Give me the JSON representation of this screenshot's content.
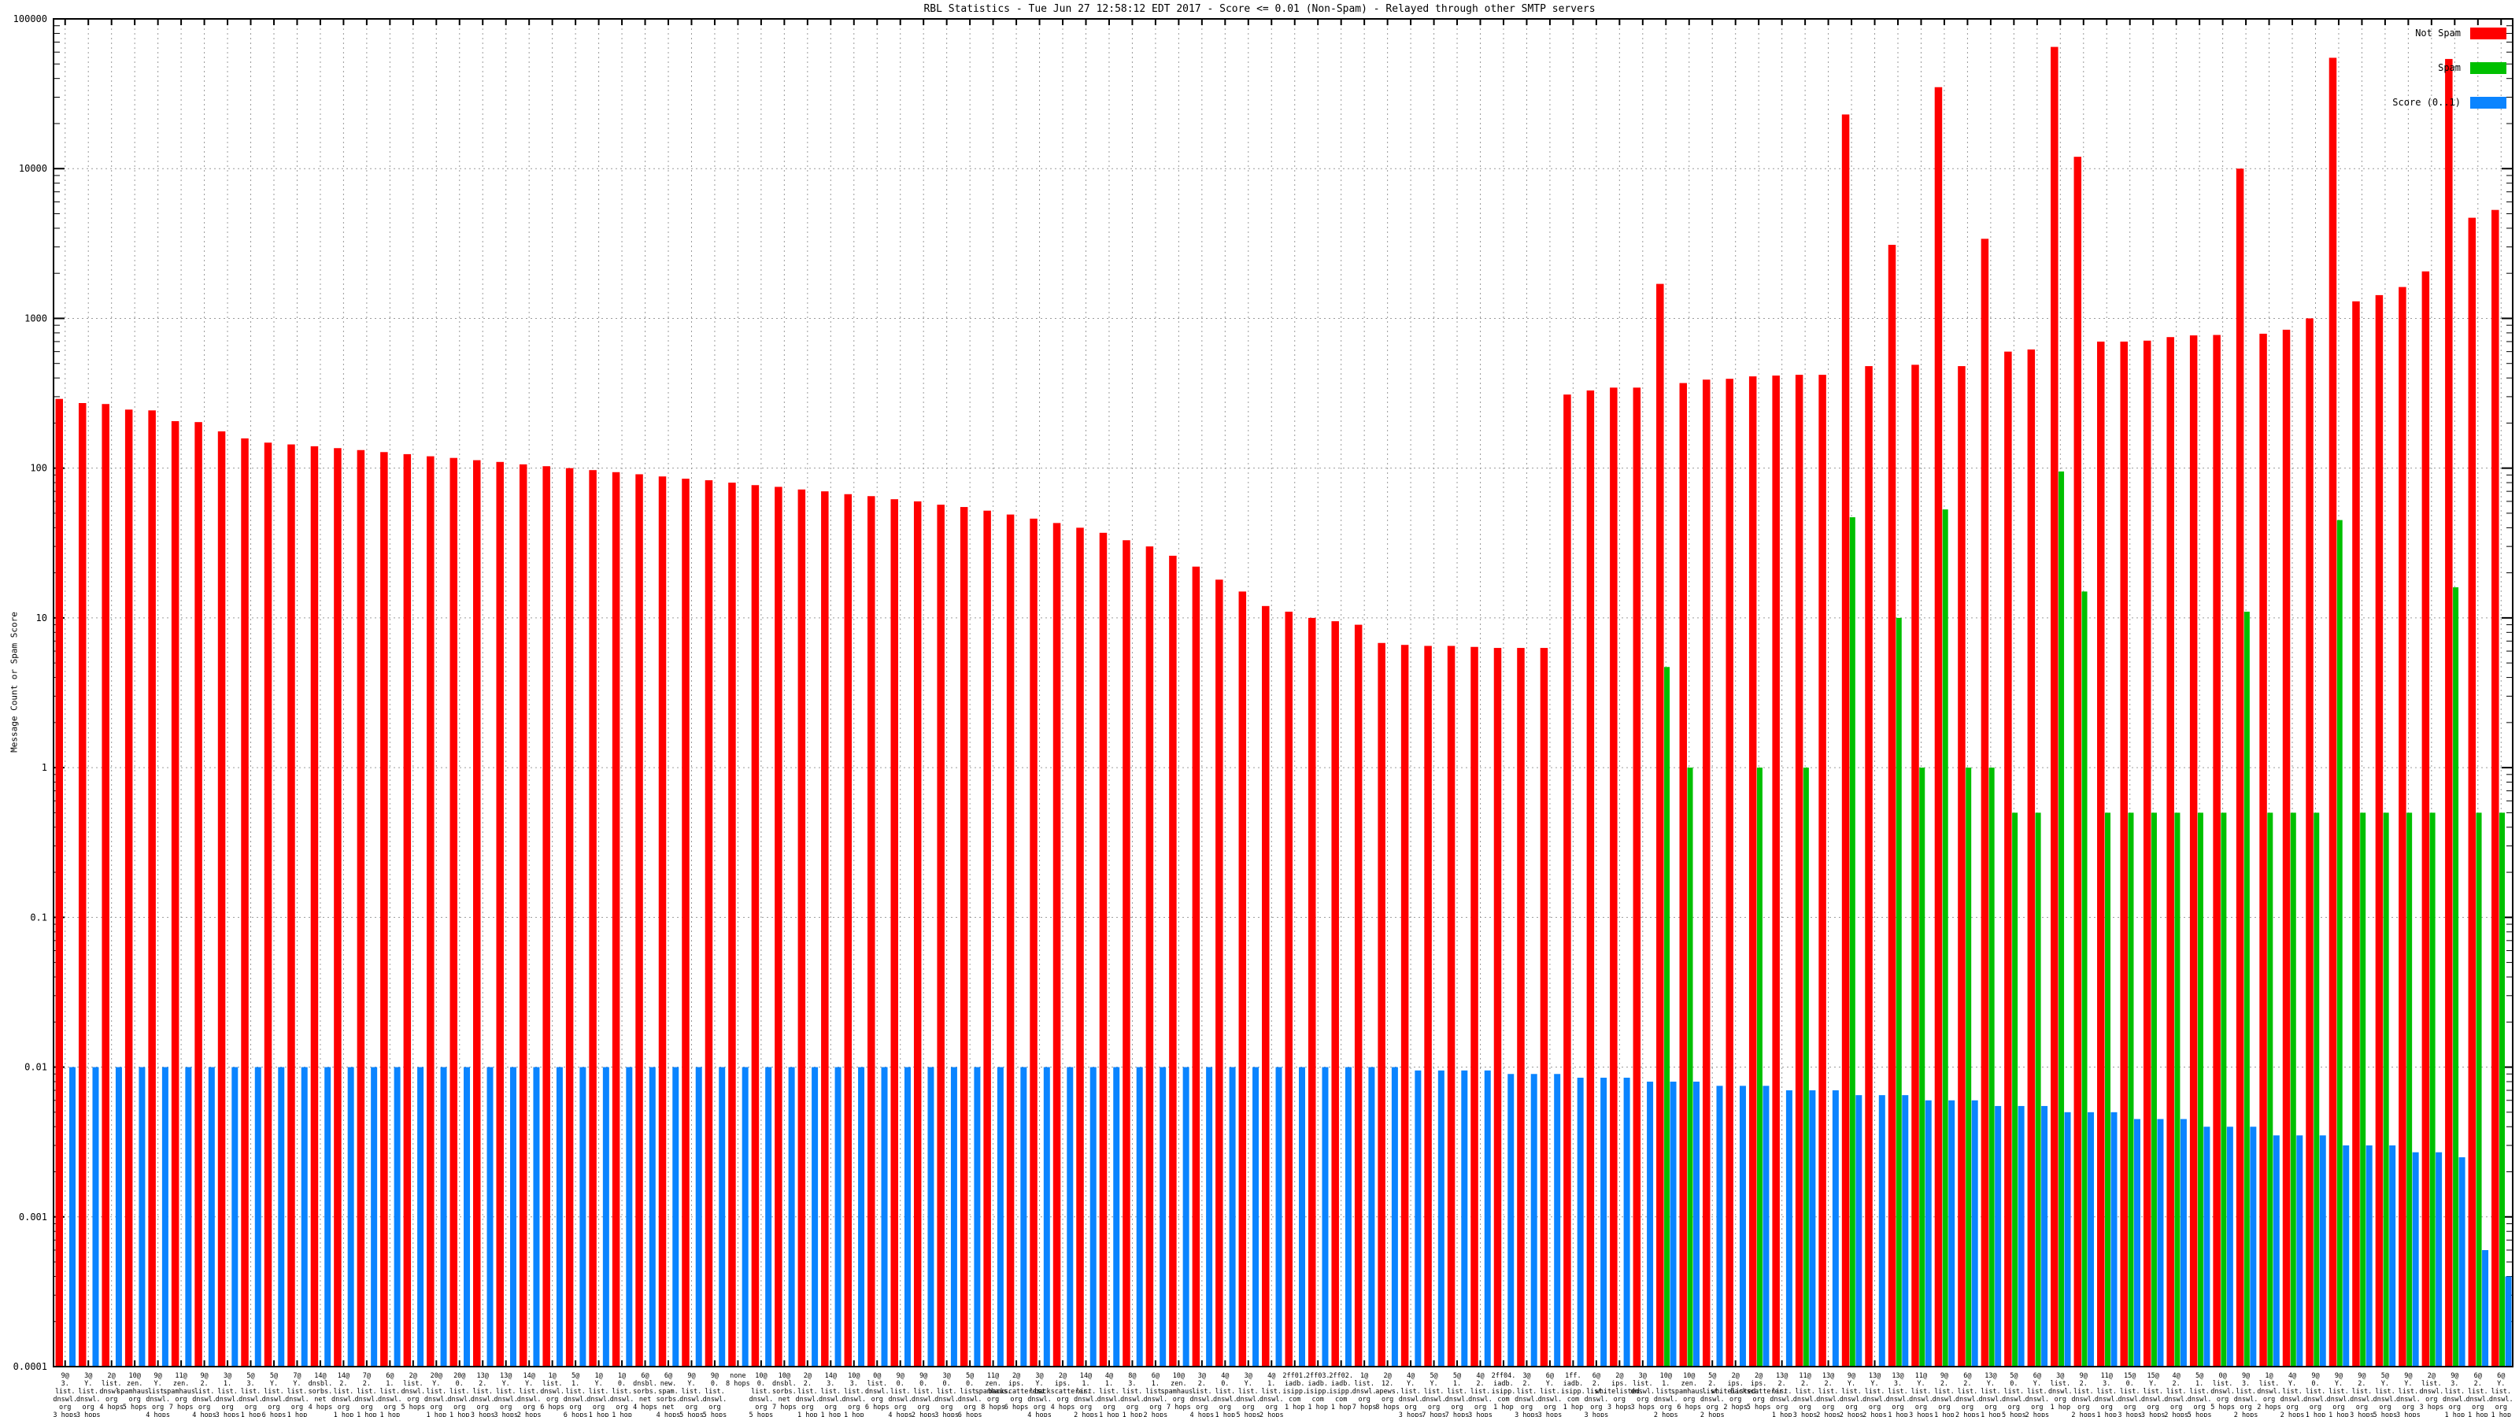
{
  "title": "RBL Statistics - Tue Jun 27 12:58:12 EDT 2017 - Score <= 0.01 (Non-Spam) - Relayed through other SMTP servers",
  "y_axis": {
    "label": "Message Count or Spam Score",
    "tick_labels": [
      "100000",
      "10000",
      "1000",
      "100",
      "10",
      "1",
      "0.1",
      "0.01",
      "0.001",
      "0.0001"
    ],
    "min": 0.0001,
    "max": 100000,
    "scale": "log"
  },
  "legend": {
    "items": [
      {
        "label": "Not Spam",
        "color": "#ff0000"
      },
      {
        "label": "Spam",
        "color": "#00c000"
      },
      {
        "label": "Score (0..1)",
        "color": "#0a84ff"
      }
    ]
  },
  "colors": {
    "not_spam": "#ff0000",
    "spam": "#00c000",
    "score": "#0a84ff",
    "grid": "#9a9a9a",
    "axis": "#000000",
    "background": "#ffffff"
  },
  "chart_data": {
    "type": "bar",
    "title": "RBL Statistics - Tue Jun 27 12:58:12 EDT 2017 - Score <= 0.01 (Non-Spam) - Relayed through other SMTP servers",
    "xlabel": "",
    "ylabel": "Message Count or Spam Score",
    "ylim": [
      0.0001,
      100000
    ],
    "log_scale_y": true,
    "grid": true,
    "legend_position": "top-right",
    "series_names": [
      "Not Spam",
      "Spam",
      "Score (0..1)"
    ],
    "bars": [
      {
        "label": "9@ 3. list. dnswl. org 3 hops",
        "not_spam": 290,
        "spam": 0,
        "score": 0.01
      },
      {
        "label": "3@ Y. list. dnswl. org 3 hops",
        "not_spam": 272,
        "spam": 0,
        "score": 0.01
      },
      {
        "label": "2@ list. dnswl. org 4 hops",
        "not_spam": 268,
        "spam": 0,
        "score": 0.01
      },
      {
        "label": "10@ zen. spamhaus. org 5 hops",
        "not_spam": 246,
        "spam": 0,
        "score": 0.01
      },
      {
        "label": "9@ Y. list. dnswl. org 4 hops",
        "not_spam": 243,
        "spam": 0,
        "score": 0.01
      },
      {
        "label": "11@ zen. spamhaus. org 7 hops",
        "not_spam": 206,
        "spam": 0,
        "score": 0.01
      },
      {
        "label": "9@ 2. list. dnswl. org 4 hops",
        "not_spam": 203,
        "spam": 0,
        "score": 0.01
      },
      {
        "label": "3@ 1. list. dnswl. org 3 hops",
        "not_spam": 176,
        "spam": 0,
        "score": 0.01
      },
      {
        "label": "5@ 3. list. dnswl. org 1 hop",
        "not_spam": 158,
        "spam": 0,
        "score": 0.01
      },
      {
        "label": "5@ Y. list. dnswl. org 6 hops",
        "not_spam": 148,
        "spam": 0,
        "score": 0.01
      },
      {
        "label": "7@ Y. list. dnswl. org 1 hop",
        "not_spam": 144,
        "spam": 0,
        "score": 0.01
      },
      {
        "label": "14@ dnsbl. sorbs. net 4 hops",
        "not_spam": 140,
        "spam": 0,
        "score": 0.01
      },
      {
        "label": "14@ 2. list. dnswl. org 1 hop",
        "not_spam": 136,
        "spam": 0,
        "score": 0.01
      },
      {
        "label": "7@ 2. list. dnswl. org 1 hop",
        "not_spam": 132,
        "spam": 0,
        "score": 0.01
      },
      {
        "label": "6@ 1. list. dnswl. org 1 hop",
        "not_spam": 128,
        "spam": 0,
        "score": 0.01
      },
      {
        "label": "2@ list. dnswl. org 5 hops",
        "not_spam": 124,
        "spam": 0,
        "score": 0.01
      },
      {
        "label": "20@ Y. list. dnswl. org 1 hop",
        "not_spam": 120,
        "spam": 0,
        "score": 0.01
      },
      {
        "label": "20@ 0. list. dnswl. org 1 hop",
        "not_spam": 117,
        "spam": 0,
        "score": 0.01
      },
      {
        "label": "13@ 2. list. dnswl. org 3 hops",
        "not_spam": 113,
        "spam": 0,
        "score": 0.01
      },
      {
        "label": "13@ Y. list. dnswl. org 3 hops",
        "not_spam": 110,
        "spam": 0,
        "score": 0.01
      },
      {
        "label": "14@ Y. list. dnswl. org 2 hops",
        "not_spam": 106,
        "spam": 0,
        "score": 0.01
      },
      {
        "label": "1@ list. dnswl. org 6 hops",
        "not_spam": 103,
        "spam": 0,
        "score": 0.01
      },
      {
        "label": "5@ 1. list. dnswl. org 6 hops",
        "not_spam": 100,
        "spam": 0,
        "score": 0.01
      },
      {
        "label": "1@ Y. list. dnswl. org 1 hop",
        "not_spam": 97,
        "spam": 0,
        "score": 0.01
      },
      {
        "label": "1@ 0. list. dnswl. org 1 hop",
        "not_spam": 94,
        "spam": 0,
        "score": 0.01
      },
      {
        "label": "6@ dnsbl. sorbs. net 4 hops",
        "not_spam": 91,
        "spam": 0,
        "score": 0.01
      },
      {
        "label": "6@ new. spam. sorbs. net 4 hops",
        "not_spam": 88,
        "spam": 0,
        "score": 0.01
      },
      {
        "label": "9@ Y. list. dnswl. org 5 hops",
        "not_spam": 85,
        "spam": 0,
        "score": 0.01
      },
      {
        "label": "9@ 0. list. dnswl. org 5 hops",
        "not_spam": 83,
        "spam": 0,
        "score": 0.01
      },
      {
        "label": "none 8 hops",
        "not_spam": 80,
        "spam": 0,
        "score": 0.01
      },
      {
        "label": "10@ 0. list. dnswl. org 5 hops",
        "not_spam": 77,
        "spam": 0,
        "score": 0.01
      },
      {
        "label": "10@ dnsbl. sorbs. net 7 hops",
        "not_spam": 75,
        "spam": 0,
        "score": 0.01
      },
      {
        "label": "2@ 2. list. dnswl. org 1 hop",
        "not_spam": 72,
        "spam": 0,
        "score": 0.01
      },
      {
        "label": "14@ 3. list. dnswl. org 1 hop",
        "not_spam": 70,
        "spam": 0,
        "score": 0.01
      },
      {
        "label": "10@ 3. list. dnswl. org 1 hop",
        "not_spam": 67,
        "spam": 0,
        "score": 0.01
      },
      {
        "label": "0@ list. dnswl. org 6 hops",
        "not_spam": 65,
        "spam": 0,
        "score": 0.01
      },
      {
        "label": "9@ 0. list. dnswl. org 4 hops",
        "not_spam": 62,
        "spam": 0,
        "score": 0.01
      },
      {
        "label": "9@ 0. list. dnswl. org 2 hops",
        "not_spam": 60,
        "spam": 0,
        "score": 0.01
      },
      {
        "label": "3@ 0. list. dnswl. org 3 hops",
        "not_spam": 57,
        "spam": 0,
        "score": 0.01
      },
      {
        "label": "5@ 0. list. dnswl. org 6 hops",
        "not_spam": 55,
        "spam": 0,
        "score": 0.01
      },
      {
        "label": "11@ zen. spamhaus. org 8 hops",
        "not_spam": 52,
        "spam": 0,
        "score": 0.01
      },
      {
        "label": "2@ ips. backscatterer. org 6 hops",
        "not_spam": 49,
        "spam": 0,
        "score": 0.01
      },
      {
        "label": "3@ Y. list. dnswl. org 4 hops",
        "not_spam": 46,
        "spam": 0,
        "score": 0.01
      },
      {
        "label": "2@ ips. backscatterer. org 4 hops",
        "not_spam": 43,
        "spam": 0,
        "score": 0.01
      },
      {
        "label": "14@ 1. list. dnswl. org 2 hops",
        "not_spam": 40,
        "spam": 0,
        "score": 0.01
      },
      {
        "label": "4@ 1. list. dnswl. org 1 hop",
        "not_spam": 37,
        "spam": 0,
        "score": 0.01
      },
      {
        "label": "8@ 3. list. dnswl. org 1 hop",
        "not_spam": 33,
        "spam": 0,
        "score": 0.01
      },
      {
        "label": "6@ 1. list. dnswl. org 2 hops",
        "not_spam": 30,
        "spam": 0,
        "score": 0.01
      },
      {
        "label": "10@ zen. spamhaus. org 7 hops",
        "not_spam": 26,
        "spam": 0,
        "score": 0.01
      },
      {
        "label": "3@ 2. list. dnswl. org 4 hops",
        "not_spam": 22,
        "spam": 0,
        "score": 0.01
      },
      {
        "label": "4@ 0. list. dnswl. org 1 hop",
        "not_spam": 18,
        "spam": 0,
        "score": 0.01
      },
      {
        "label": "3@ Y. list. dnswl. org 5 hops",
        "not_spam": 15,
        "spam": 0,
        "score": 0.01
      },
      {
        "label": "4@ 1. list. dnswl. org 2 hops",
        "not_spam": 12,
        "spam": 0,
        "score": 0.01
      },
      {
        "label": "2ff01. iadb. isipp. com 1 hop",
        "not_spam": 11,
        "spam": 0,
        "score": 0.01
      },
      {
        "label": "2ff03. iadb. isipp. com 1 hop",
        "not_spam": 10,
        "spam": 0,
        "score": 0.01
      },
      {
        "label": "2ff02. iadb. isipp. com 1 hop",
        "not_spam": 9.5,
        "spam": 0,
        "score": 0.01
      },
      {
        "label": "1@ list. dnswl. org 7 hops",
        "not_spam": 9,
        "spam": 0,
        "score": 0.01
      },
      {
        "label": "2@ 12. apews. org 8 hops",
        "not_spam": 6.8,
        "spam": 0,
        "score": 0.01
      },
      {
        "label": "4@ Y. list. dnswl. org 3 hops",
        "not_spam": 6.6,
        "spam": 0,
        "score": 0.0095
      },
      {
        "label": "5@ Y. list. dnswl. org 7 hops",
        "not_spam": 6.5,
        "spam": 0,
        "score": 0.0095
      },
      {
        "label": "5@ 1. list. dnswl. org 7 hops",
        "not_spam": 6.5,
        "spam": 0,
        "score": 0.0095
      },
      {
        "label": "4@ 2. list. dnswl. org 3 hops",
        "not_spam": 6.4,
        "spam": 0,
        "score": 0.0095
      },
      {
        "label": "2ff04. iadb. isipp. com 1 hop",
        "not_spam": 6.3,
        "spam": 0,
        "score": 0.009
      },
      {
        "label": "3@ 2. list. dnswl. org 3 hops",
        "not_spam": 6.3,
        "spam": 0,
        "score": 0.009
      },
      {
        "label": "6@ Y. list. dnswl. org 3 hops",
        "not_spam": 6.3,
        "spam": 0,
        "score": 0.009
      },
      {
        "label": "1ff. iadb. isipp. com 1 hop",
        "not_spam": 310,
        "spam": 0,
        "score": 0.0085
      },
      {
        "label": "6@ 2. list. dnswl. org 3 hops",
        "not_spam": 330,
        "spam": 0,
        "score": 0.0085
      },
      {
        "label": "2@ ips. whitelisted. org 3 hops",
        "not_spam": 345,
        "spam": 0,
        "score": 0.0085
      },
      {
        "label": "3@ list. dnswl. org 3 hops",
        "not_spam": 345,
        "spam": 0,
        "score": 0.008
      },
      {
        "label": "10@ 1. list. dnswl. org 2 hops",
        "not_spam": 1700,
        "spam": 4.7,
        "score": 0.008
      },
      {
        "label": "10@ zen. spamhaus. org 6 hops",
        "not_spam": 370,
        "spam": 1,
        "score": 0.008
      },
      {
        "label": "5@ 2. list. dnswl. org 2 hops",
        "not_spam": 390,
        "spam": 0,
        "score": 0.0075
      },
      {
        "label": "2@ ips. whitelisted. org 2 hops",
        "not_spam": 395,
        "spam": 0,
        "score": 0.0075
      },
      {
        "label": "2@ ips. backscatterer. org 5 hops",
        "not_spam": 410,
        "spam": 1,
        "score": 0.0075
      },
      {
        "label": "13@ 2. list. dnswl. org 1 hop",
        "not_spam": 415,
        "spam": 0,
        "score": 0.007
      },
      {
        "label": "11@ 2. list. dnswl. org 3 hops",
        "not_spam": 420,
        "spam": 1,
        "score": 0.007
      },
      {
        "label": "13@ 2. list. dnswl. org 2 hops",
        "not_spam": 420,
        "spam": 0,
        "score": 0.007
      },
      {
        "label": "9@ Y. list. dnswl. org 2 hops",
        "not_spam": 23000,
        "spam": 47,
        "score": 0.0065
      },
      {
        "label": "13@ Y. list. dnswl. org 2 hops",
        "not_spam": 480,
        "spam": 0,
        "score": 0.0065
      },
      {
        "label": "13@ 3. list. dnswl. org 1 hop",
        "not_spam": 3100,
        "spam": 10,
        "score": 0.0065
      },
      {
        "label": "11@ Y. list. dnswl. org 3 hops",
        "not_spam": 490,
        "spam": 1,
        "score": 0.006
      },
      {
        "label": "9@ 2. list. dnswl. org 1 hop",
        "not_spam": 35000,
        "spam": 53,
        "score": 0.006
      },
      {
        "label": "6@ 2. list. dnswl. org 2 hops",
        "not_spam": 480,
        "spam": 1,
        "score": 0.006
      },
      {
        "label": "13@ Y. list. dnswl. org 1 hop",
        "not_spam": 3400,
        "spam": 1,
        "score": 0.0055
      },
      {
        "label": "5@ 0. list. dnswl. org 5 hops",
        "not_spam": 600,
        "spam": 0.5,
        "score": 0.0055
      },
      {
        "label": "6@ Y. list. dnswl. org 2 hops",
        "not_spam": 620,
        "spam": 0.5,
        "score": 0.0055
      },
      {
        "label": "3@ list. dnswl. org 1 hop",
        "not_spam": 65000,
        "spam": 95,
        "score": 0.005
      },
      {
        "label": "9@ 2. list. dnswl. org 2 hops",
        "not_spam": 12000,
        "spam": 15,
        "score": 0.005
      },
      {
        "label": "11@ 3. list. dnswl. org 1 hop",
        "not_spam": 700,
        "spam": 0.5,
        "score": 0.005
      },
      {
        "label": "15@ 0. list. dnswl. org 3 hops",
        "not_spam": 700,
        "spam": 0.5,
        "score": 0.0045
      },
      {
        "label": "15@ Y. list. dnswl. org 3 hops",
        "not_spam": 710,
        "spam": 0.5,
        "score": 0.0045
      },
      {
        "label": "4@ 2. list. dnswl. org 2 hops",
        "not_spam": 750,
        "spam": 0.5,
        "score": 0.0045
      },
      {
        "label": "5@ 1. list. dnswl. org 5 hops",
        "not_spam": 770,
        "spam": 0.5,
        "score": 0.004
      },
      {
        "label": "0@ list. dnswl. org 5 hops",
        "not_spam": 775,
        "spam": 0.5,
        "score": 0.004
      },
      {
        "label": "9@ 3. list. dnswl. org 2 hops",
        "not_spam": 10000,
        "spam": 11,
        "score": 0.004
      },
      {
        "label": "1@ list. dnswl. org 2 hops",
        "not_spam": 790,
        "spam": 0.5,
        "score": 0.0035
      },
      {
        "label": "4@ Y. list. dnswl. org 2 hops",
        "not_spam": 840,
        "spam": 0.5,
        "score": 0.0035
      },
      {
        "label": "9@ 0. list. dnswl. org 1 hop",
        "not_spam": 1000,
        "spam": 0.5,
        "score": 0.0035
      },
      {
        "label": "9@ Y. list. dnswl. org 1 hop",
        "not_spam": 55000,
        "spam": 45,
        "score": 0.003
      },
      {
        "label": "9@ 2. list. dnswl. org 3 hops",
        "not_spam": 1300,
        "spam": 0.5,
        "score": 0.003
      },
      {
        "label": "5@ Y. list. dnswl. org 5 hops",
        "not_spam": 1430,
        "spam": 0.5,
        "score": 0.003
      },
      {
        "label": "9@ Y. list. dnswl. org 3 hops",
        "not_spam": 1620,
        "spam": 0.5,
        "score": 0.0027
      },
      {
        "label": "2@ list. dnswl. org 3 hops",
        "not_spam": 2060,
        "spam": 0.5,
        "score": 0.0027
      },
      {
        "label": "9@ 3. list. dnswl. org 1 hop",
        "not_spam": 54000,
        "spam": 16,
        "score": 0.0025
      },
      {
        "label": "6@ 2. list. dnswl. org 1 hop",
        "not_spam": 4700,
        "spam": 0.5,
        "score": 0.0006
      },
      {
        "label": "6@ Y. list. dnswl. org 1 hop",
        "not_spam": 5300,
        "spam": 0.5,
        "score": 0.0004
      }
    ]
  }
}
